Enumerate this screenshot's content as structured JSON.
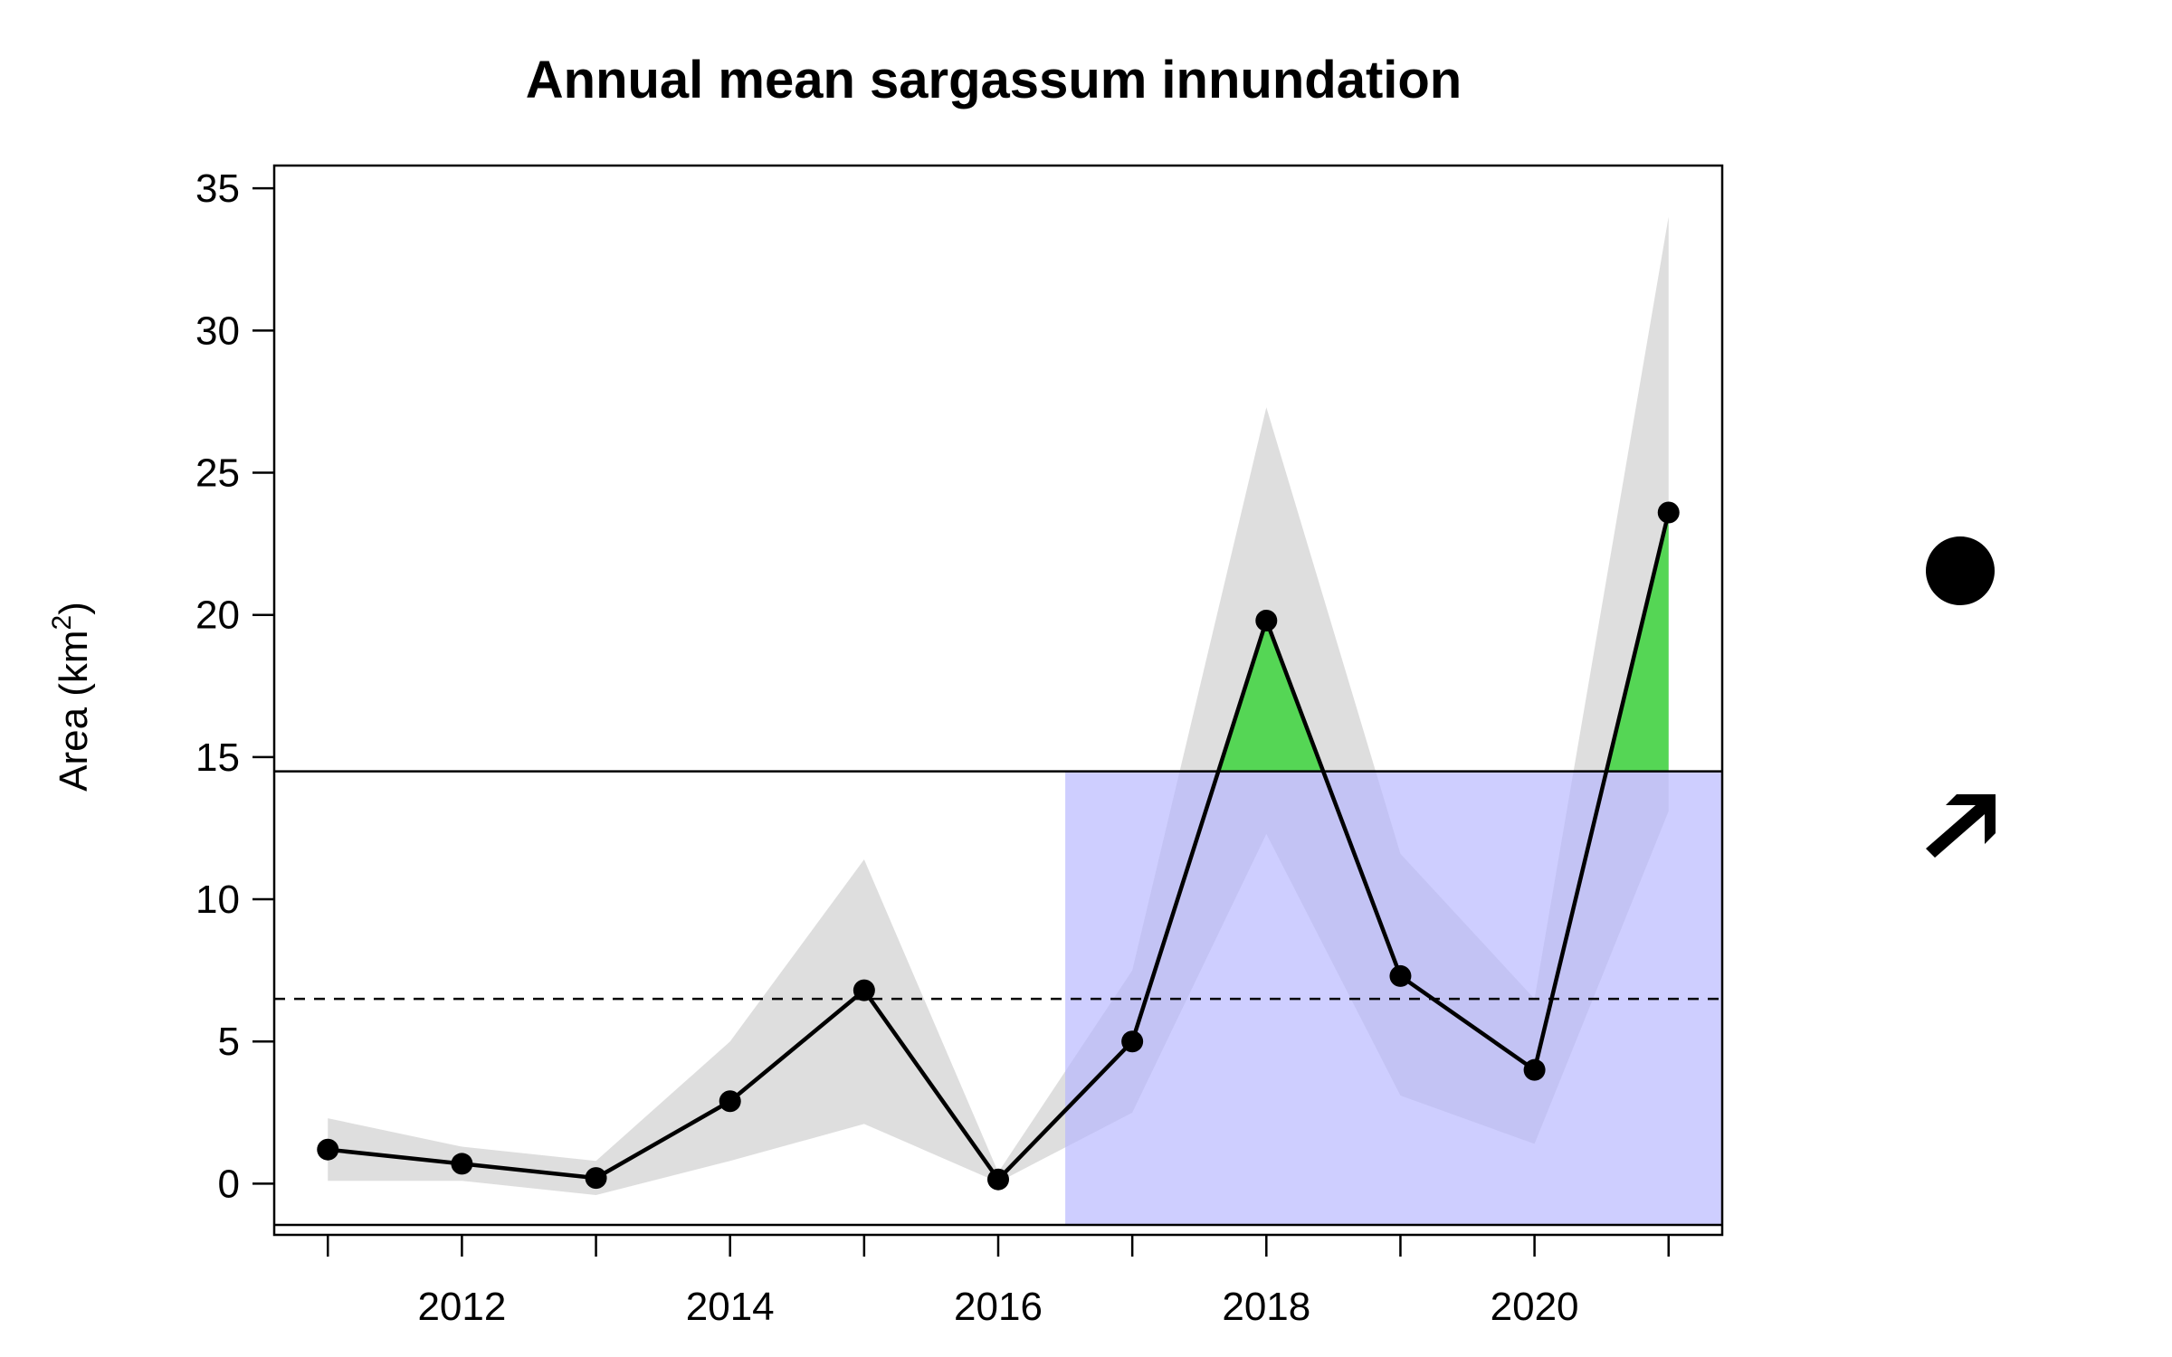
{
  "chart_data": {
    "type": "line",
    "title": "Annual mean sargassum innundation",
    "ylabel": {
      "text": "Area (km",
      "sup": "2",
      "close": ")"
    },
    "xlabel": "",
    "x": [
      2011,
      2012,
      2013,
      2014,
      2015,
      2016,
      2017,
      2018,
      2019,
      2020,
      2021
    ],
    "series": [
      {
        "values": [
          1.2,
          0.7,
          0.2,
          2.9,
          6.8,
          0.15,
          5.0,
          19.8,
          7.3,
          4.0,
          23.6
        ],
        "color": "#000000",
        "band_lower": [
          0.1,
          0.1,
          -0.4,
          0.8,
          2.1,
          0.05,
          2.5,
          12.3,
          3.1,
          1.4,
          13.1
        ],
        "band_upper": [
          2.3,
          1.3,
          0.8,
          5.0,
          11.4,
          0.4,
          7.5,
          27.3,
          11.6,
          6.5,
          34.0
        ],
        "band_color": "#d3d3d3"
      }
    ],
    "mean_line": 6.5,
    "upper_threshold_line": 14.5,
    "lower_threshold_line": -1.45,
    "highlight_region": {
      "x_start": 2016.5,
      "x_end": 2021.4,
      "color": "#b3b3ff"
    },
    "above_fill_color": "#55d655",
    "xlim": [
      2010.6,
      2021.4
    ],
    "ylim": [
      -1.8,
      35.8
    ],
    "x_ticks": [
      2011,
      2012,
      2013,
      2014,
      2015,
      2016,
      2017,
      2018,
      2019,
      2020,
      2021
    ],
    "x_tick_labels": [
      "2012",
      "2014",
      "2016",
      "2018",
      "2020"
    ],
    "x_tick_label_values": [
      2012,
      2014,
      2016,
      2018,
      2020
    ],
    "y_ticks": [
      0,
      5,
      10,
      15,
      20,
      25,
      30,
      35
    ],
    "y_tick_labels": [
      "0",
      "5",
      "10",
      "15",
      "20",
      "25",
      "30",
      "35"
    ],
    "grid": false,
    "legend": "none",
    "trend_indicators": [
      {
        "icon": "filled-circle-icon"
      },
      {
        "icon": "arrow-up-right-icon"
      }
    ]
  }
}
